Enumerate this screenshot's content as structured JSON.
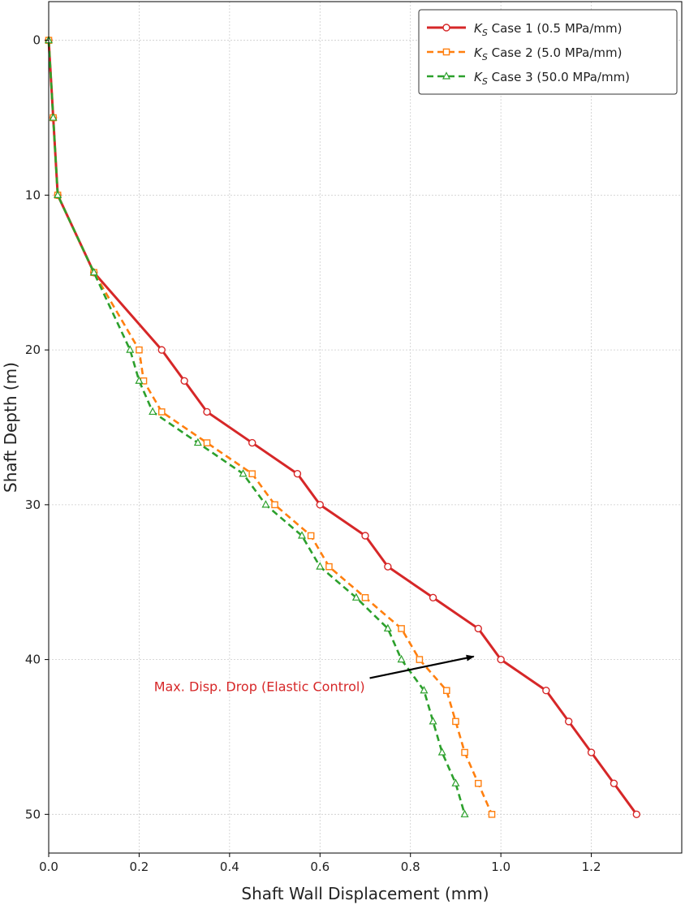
{
  "chart_data": {
    "type": "line",
    "xlabel": "Shaft Wall Displacement (mm)",
    "ylabel": "Shaft Depth (m)",
    "xlim": [
      0.0,
      1.4
    ],
    "ylim": [
      52.5,
      -2.5
    ],
    "y_inverted": true,
    "grid": true,
    "legend_position": "top-right",
    "x_ticks": [
      "0.0",
      "0.2",
      "0.4",
      "0.6",
      "0.8",
      "1.0",
      "1.2"
    ],
    "y_ticks": [
      "0",
      "10",
      "20",
      "30",
      "40",
      "50"
    ],
    "x_tick_values": [
      0.0,
      0.2,
      0.4,
      0.6,
      0.8,
      1.0,
      1.2
    ],
    "y_tick_values": [
      0,
      10,
      20,
      30,
      40,
      50
    ],
    "series": [
      {
        "name_symbol": "K",
        "name_subscript": "S",
        "name_rest": " Case 1 (0.5 MPa/mm)",
        "color": "#d62728",
        "line_style": "solid",
        "marker": "circle",
        "points": [
          [
            0.0,
            0
          ],
          [
            0.01,
            5
          ],
          [
            0.02,
            10
          ],
          [
            0.1,
            15
          ],
          [
            0.25,
            20
          ],
          [
            0.3,
            22
          ],
          [
            0.35,
            24
          ],
          [
            0.45,
            26
          ],
          [
            0.55,
            28
          ],
          [
            0.6,
            30
          ],
          [
            0.7,
            32
          ],
          [
            0.75,
            34
          ],
          [
            0.85,
            36
          ],
          [
            0.95,
            38
          ],
          [
            1.0,
            40
          ],
          [
            1.1,
            42
          ],
          [
            1.15,
            44
          ],
          [
            1.2,
            46
          ],
          [
            1.25,
            48
          ],
          [
            1.3,
            50
          ]
        ]
      },
      {
        "name_symbol": "K",
        "name_subscript": "S",
        "name_rest": " Case 2 (5.0 MPa/mm)",
        "color": "#ff7f0e",
        "line_style": "dashed",
        "marker": "square",
        "points": [
          [
            0.0,
            0
          ],
          [
            0.01,
            5
          ],
          [
            0.02,
            10
          ],
          [
            0.1,
            15
          ],
          [
            0.2,
            20
          ],
          [
            0.21,
            22
          ],
          [
            0.25,
            24
          ],
          [
            0.35,
            26
          ],
          [
            0.45,
            28
          ],
          [
            0.5,
            30
          ],
          [
            0.58,
            32
          ],
          [
            0.62,
            34
          ],
          [
            0.7,
            36
          ],
          [
            0.78,
            38
          ],
          [
            0.82,
            40
          ],
          [
            0.88,
            42
          ],
          [
            0.9,
            44
          ],
          [
            0.92,
            46
          ],
          [
            0.95,
            48
          ],
          [
            0.98,
            50
          ]
        ]
      },
      {
        "name_symbol": "K",
        "name_subscript": "S",
        "name_rest": " Case 3 (50.0 MPa/mm)",
        "color": "#2ca02c",
        "line_style": "dashed",
        "marker": "triangle",
        "points": [
          [
            0.0,
            0
          ],
          [
            0.01,
            5
          ],
          [
            0.02,
            10
          ],
          [
            0.1,
            15
          ],
          [
            0.18,
            20
          ],
          [
            0.2,
            22
          ],
          [
            0.23,
            24
          ],
          [
            0.33,
            26
          ],
          [
            0.43,
            28
          ],
          [
            0.48,
            30
          ],
          [
            0.56,
            32
          ],
          [
            0.6,
            34
          ],
          [
            0.68,
            36
          ],
          [
            0.75,
            38
          ],
          [
            0.78,
            40
          ],
          [
            0.83,
            42
          ],
          [
            0.85,
            44
          ],
          [
            0.87,
            46
          ],
          [
            0.9,
            48
          ],
          [
            0.92,
            50
          ]
        ]
      }
    ],
    "annotations": [
      {
        "text": "Max. Disp. Drop (Elastic Control)",
        "color": "#d62728",
        "arrow_from": [
          0.71,
          41.2
        ],
        "arrow_to": [
          0.94,
          39.8
        ]
      }
    ]
  }
}
